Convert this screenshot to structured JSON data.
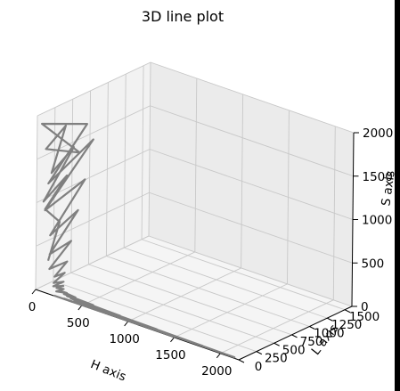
{
  "chart_data": {
    "type": "line",
    "projection": "3d",
    "title": "3D line plot",
    "xlabel": "H axis",
    "ylabel": "L axis",
    "zlabel": "S axis",
    "xlim": [
      0,
      2200
    ],
    "ylim": [
      0,
      1600
    ],
    "zlim": [
      0,
      2000
    ],
    "xticks": [
      "0",
      "500",
      "1000",
      "1500",
      "2000"
    ],
    "yticks": [
      "0",
      "250",
      "500",
      "750",
      "1000",
      "1250",
      "1500"
    ],
    "zticks": [
      "0",
      "500",
      "1000",
      "1500",
      "2000"
    ],
    "grid": true,
    "line_color": "#808080",
    "series": [
      {
        "x": [
          40,
          55,
          25,
          60,
          30,
          70,
          45,
          80,
          35,
          65,
          20,
          75,
          50,
          90,
          40,
          110,
          60,
          130,
          80,
          150,
          100,
          170,
          120,
          190,
          140,
          210,
          160,
          230,
          180,
          250,
          200,
          300,
          220,
          400,
          260,
          600,
          300,
          900,
          350,
          1300,
          420,
          1800,
          500,
          2150,
          600,
          1900,
          500,
          1500,
          400,
          1100,
          300,
          700,
          200,
          400
        ],
        "y": [
          120,
          260,
          90,
          350,
          60,
          430,
          150,
          300,
          80,
          520,
          40,
          610,
          100,
          680,
          70,
          540,
          120,
          420,
          90,
          300,
          60,
          220,
          110,
          160,
          70,
          120,
          40,
          90,
          60,
          70,
          30,
          50,
          80,
          40,
          60,
          30,
          50,
          20,
          40,
          15,
          35,
          10,
          30,
          5,
          25,
          8,
          20,
          6,
          15,
          4,
          10,
          3,
          5,
          2
        ],
        "z": [
          300,
          700,
          900,
          1200,
          1000,
          1500,
          1300,
          1800,
          1600,
          1400,
          1900,
          1700,
          1200,
          1500,
          900,
          1100,
          600,
          800,
          400,
          500,
          250,
          300,
          150,
          200,
          100,
          120,
          80,
          90,
          60,
          70,
          40,
          50,
          30,
          40,
          20,
          30,
          15,
          20,
          10,
          15,
          8,
          10,
          5,
          8,
          4,
          6,
          3,
          5,
          2,
          4,
          1,
          3,
          0,
          2
        ]
      }
    ]
  }
}
